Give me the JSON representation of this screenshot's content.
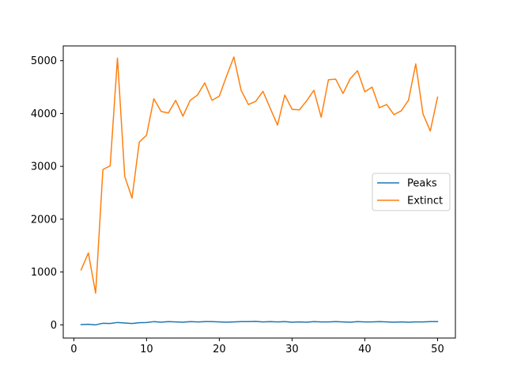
{
  "chart_data": {
    "type": "line",
    "title": "",
    "xlabel": "",
    "ylabel": "",
    "xlim": [
      -1.45,
      52.45
    ],
    "ylim": [
      -250,
      5280
    ],
    "xticks": [
      0,
      10,
      20,
      30,
      40,
      50
    ],
    "yticks": [
      0,
      1000,
      2000,
      3000,
      4000,
      5000
    ],
    "grid": false,
    "legend_position": "center-right",
    "x": [
      1,
      2,
      3,
      4,
      5,
      6,
      7,
      8,
      9,
      10,
      11,
      12,
      13,
      14,
      15,
      16,
      17,
      18,
      19,
      20,
      21,
      22,
      23,
      24,
      25,
      26,
      27,
      28,
      29,
      30,
      31,
      32,
      33,
      34,
      35,
      36,
      37,
      38,
      39,
      40,
      41,
      42,
      43,
      44,
      45,
      46,
      47,
      48,
      49,
      50
    ],
    "series": [
      {
        "name": "Peaks",
        "color": "#1f77b4",
        "values": [
          5,
          10,
          0,
          30,
          25,
          45,
          35,
          25,
          40,
          45,
          60,
          50,
          60,
          55,
          50,
          60,
          55,
          60,
          60,
          55,
          50,
          55,
          60,
          60,
          65,
          55,
          60,
          55,
          60,
          50,
          55,
          50,
          60,
          55,
          55,
          60,
          55,
          50,
          60,
          55,
          55,
          60,
          55,
          50,
          55,
          50,
          55,
          55,
          60,
          60
        ]
      },
      {
        "name": "Extinct",
        "color": "#ff7f0e",
        "values": [
          1040,
          1360,
          600,
          2940,
          3010,
          5050,
          2810,
          2400,
          3460,
          3590,
          4280,
          4040,
          4010,
          4250,
          3950,
          4250,
          4350,
          4580,
          4250,
          4330,
          4710,
          5070,
          4440,
          4170,
          4230,
          4420,
          4100,
          3780,
          4350,
          4080,
          4070,
          4240,
          4440,
          3930,
          4640,
          4650,
          4380,
          4660,
          4810,
          4410,
          4500,
          4110,
          4170,
          3980,
          4050,
          4250,
          4940,
          3990,
          3670,
          4310
        ]
      }
    ]
  }
}
